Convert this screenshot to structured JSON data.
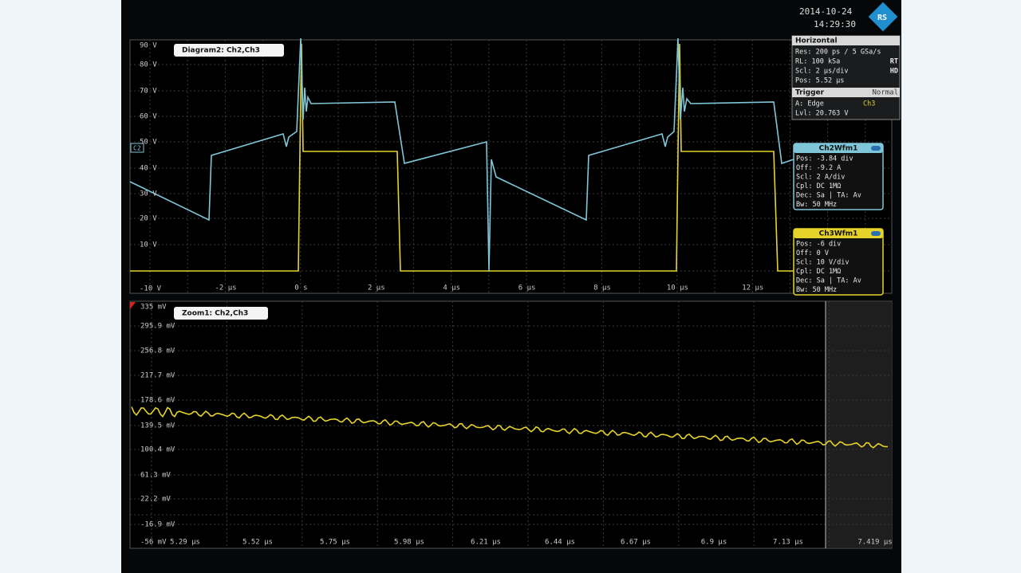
{
  "header": {
    "date": "2014-10-24",
    "time": "14:29:30"
  },
  "horizontal": {
    "title": "Horizontal",
    "rows": [
      {
        "text": "Res: 200 ps / 5 GSa/s"
      },
      {
        "text": "RL: 100 kSa",
        "flag": "RT"
      },
      {
        "text": "Scl: 2 µs/div",
        "flag": "HD"
      },
      {
        "text": "Pos: 5.52 µs"
      }
    ]
  },
  "trigger": {
    "title": "Trigger",
    "mode": "Normal",
    "source": "A:  Edge",
    "channel": "Ch3",
    "level": "Lvl: 20.763 V"
  },
  "channels": [
    {
      "title": "Ch2Wfm1",
      "rows": [
        "Pos: -3.84 div",
        "Off: -9.2 A",
        "Scl: 2 A/div",
        "Cpl: DC 1MΩ",
        "Dec: Sa | TA: Av",
        "Bw: 50 MHz"
      ]
    },
    {
      "title": "Ch3Wfm1",
      "rows": [
        "Pos: -6 div",
        "Off: 0 V",
        "Scl: 10 V/div",
        "Cpl: DC 1MΩ",
        "Dec: Sa | TA: Av",
        "Bw: 50 MHz"
      ]
    }
  ],
  "diagram": {
    "title": "Diagram2: Ch2,Ch3",
    "marker": "C2",
    "y_labels": [
      "90 V",
      "80 V",
      "70 V",
      "60 V",
      "50 V",
      "40 V",
      "30 V",
      "20 V",
      "10 V",
      "-10 V"
    ],
    "x_labels": [
      "-2 µs",
      "0 s",
      "2 µs",
      "4 µs",
      "6 µs",
      "8 µs",
      "10 µs",
      "12 µs"
    ]
  },
  "zoom": {
    "title": "Zoom1: Ch2,Ch3",
    "y_labels": [
      "335 mV",
      "295.9 mV",
      "256.8 mV",
      "217.7 mV",
      "178.6 mV",
      "139.5 mV",
      "100.4 mV",
      "61.3 mV",
      "22.2 mV",
      "-16.9 mV",
      "-56 mV"
    ],
    "x_labels": [
      "5.29 µs",
      "5.52 µs",
      "5.75 µs",
      "5.98 µs",
      "6.21 µs",
      "6.44 µs",
      "6.67 µs",
      "6.9 µs",
      "7.13 µs",
      "7.419 µs"
    ]
  }
}
